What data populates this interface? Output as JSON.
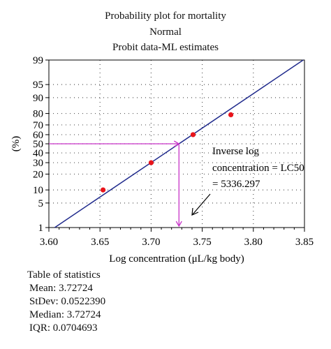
{
  "chart_data": {
    "type": "scatter",
    "title_lines": [
      "Probability plot for mortality",
      "Normal",
      "Probit data-ML estimates"
    ],
    "xlabel": "Log concentration (μL/kg body)",
    "ylabel": "(%)",
    "xlim": [
      3.6,
      3.85
    ],
    "ylim": [
      1,
      99
    ],
    "y_scale": "probit",
    "x_ticks": [
      3.6,
      3.65,
      3.7,
      3.75,
      3.8,
      3.85
    ],
    "x_tick_labels": [
      "3.60",
      "3.65",
      "3.70",
      "3.75",
      "3.80",
      "3.85"
    ],
    "y_ticks": [
      1,
      5,
      10,
      20,
      30,
      40,
      50,
      60,
      70,
      80,
      90,
      95,
      99
    ],
    "y_tick_labels": [
      "1",
      "5",
      "10",
      "20",
      "30",
      "40",
      "50",
      "60",
      "70",
      "80",
      "90",
      "95",
      "99"
    ],
    "grid": true,
    "points": [
      {
        "x": 3.653,
        "y": 10
      },
      {
        "x": 3.7,
        "y": 30
      },
      {
        "x": 3.741,
        "y": 60
      },
      {
        "x": 3.778,
        "y": 79
      }
    ],
    "fit": {
      "mean": 3.72724,
      "stdev": 0.052239
    },
    "lc50_x": 3.72724,
    "annotation_lines": [
      "Inverse log",
      "concentration = LC50",
      "= 5336.297"
    ],
    "colors": {
      "points": "#e8141b",
      "fit_line": "#1f2a8c",
      "guide": "#c832c8",
      "grid": "#555555"
    }
  },
  "statistics": {
    "title": "Table of  statistics",
    "rows": [
      {
        "label": "Mean: ",
        "value": "3.72724"
      },
      {
        "label": "StDev: ",
        "value": "0.0522390"
      },
      {
        "label": "Median: ",
        "value": "3.72724"
      },
      {
        "label": "IQR: ",
        "value": "0.0704693"
      }
    ]
  }
}
